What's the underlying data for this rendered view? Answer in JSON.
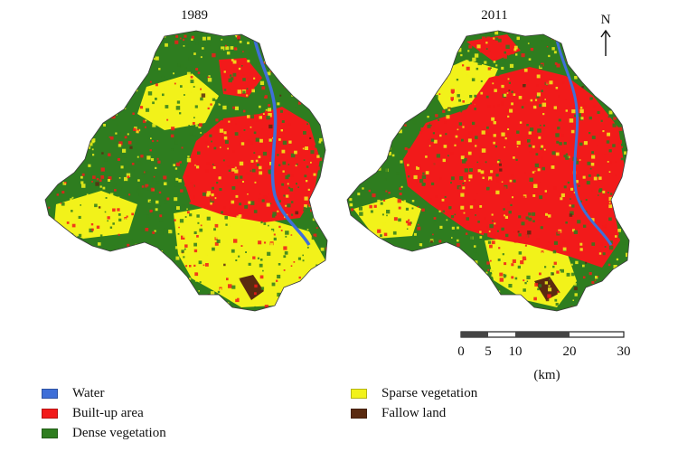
{
  "maps": [
    {
      "id": "1989",
      "title": "1989"
    },
    {
      "id": "2011",
      "title": "2011"
    }
  ],
  "north_arrow": {
    "label": "N"
  },
  "scale_bar": {
    "ticks": [
      "0",
      "5",
      "10",
      "20",
      "30"
    ],
    "unit": "(km)"
  },
  "legend": [
    {
      "label": "Water",
      "color": "#3f6fd8"
    },
    {
      "label": "Built-up area",
      "color": "#f21a1a"
    },
    {
      "label": "Dense vegetation",
      "color": "#2e7d1f"
    },
    {
      "label": "Sparse vegetation",
      "color": "#f2f21a"
    },
    {
      "label": "Fallow land",
      "color": "#5a2a10"
    }
  ]
}
